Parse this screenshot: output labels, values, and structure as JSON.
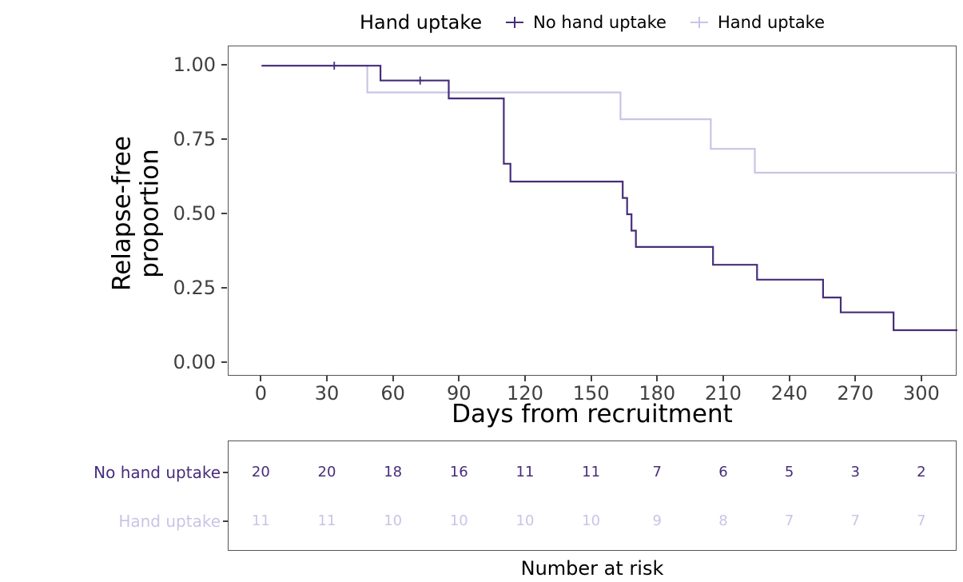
{
  "colors": {
    "no_hand_uptake": "#472d7b",
    "hand_uptake": "#cbc3e6",
    "axis_text": "#404040",
    "panel_border": "#555555"
  },
  "legend": {
    "title": "Hand uptake",
    "items": [
      {
        "label": "No hand uptake",
        "color": "#472d7b"
      },
      {
        "label": "Hand uptake",
        "color": "#cbc3e6"
      }
    ]
  },
  "axes": {
    "y_title_line1": "Relapse-free",
    "y_title_line2": "proportion",
    "x_title": "Days from recruitment",
    "y_ticks": [
      {
        "v": 1.0,
        "label": "1.00"
      },
      {
        "v": 0.75,
        "label": "0.75"
      },
      {
        "v": 0.5,
        "label": "0.50"
      },
      {
        "v": 0.25,
        "label": "0.25"
      },
      {
        "v": 0.0,
        "label": "0.00"
      }
    ],
    "x_ticks": [
      {
        "v": 0,
        "label": "0"
      },
      {
        "v": 30,
        "label": "30"
      },
      {
        "v": 60,
        "label": "60"
      },
      {
        "v": 90,
        "label": "90"
      },
      {
        "v": 120,
        "label": "120"
      },
      {
        "v": 150,
        "label": "150"
      },
      {
        "v": 180,
        "label": "180"
      },
      {
        "v": 210,
        "label": "210"
      },
      {
        "v": 240,
        "label": "240"
      },
      {
        "v": 270,
        "label": "270"
      },
      {
        "v": 300,
        "label": "300"
      }
    ]
  },
  "chart_data": {
    "type": "line",
    "subtype": "kaplan-meier-step",
    "title": "Hand uptake",
    "xlabel": "Days from recruitment",
    "ylabel": "Relapse-free proportion",
    "xlim": [
      -15,
      316
    ],
    "ylim": [
      -0.046,
      1.065
    ],
    "x_tick_values": [
      0,
      30,
      60,
      90,
      120,
      150,
      180,
      210,
      240,
      270,
      300
    ],
    "y_tick_values": [
      0,
      0.25,
      0.5,
      0.75,
      1.0
    ],
    "grid": false,
    "legend_position": "top",
    "series": [
      {
        "name": "No hand uptake",
        "color": "#472d7b",
        "points": [
          [
            0,
            1.0
          ],
          [
            54,
            0.95
          ],
          [
            85,
            0.89
          ],
          [
            110,
            0.67
          ],
          [
            113,
            0.61
          ],
          [
            164,
            0.555
          ],
          [
            166,
            0.5
          ],
          [
            168,
            0.445
          ],
          [
            170,
            0.39
          ],
          [
            205,
            0.33
          ],
          [
            225,
            0.28
          ],
          [
            255,
            0.22
          ],
          [
            263,
            0.17
          ],
          [
            287,
            0.11
          ]
        ],
        "end_x": 316,
        "censor_marks": [
          [
            33,
            1.0
          ],
          [
            72,
            0.95
          ]
        ]
      },
      {
        "name": "Hand uptake",
        "color": "#cbc3e6",
        "points": [
          [
            0,
            1.0
          ],
          [
            48,
            0.91
          ],
          [
            163,
            0.82
          ],
          [
            204,
            0.72
          ],
          [
            224,
            0.64
          ]
        ],
        "end_x": 316,
        "censor_marks": []
      }
    ]
  },
  "risk_table": {
    "caption": "Number at risk",
    "times": [
      0,
      30,
      60,
      90,
      120,
      150,
      180,
      210,
      240,
      270,
      300
    ],
    "rows": [
      {
        "label": "No hand uptake",
        "color": "#472d7b",
        "counts": [
          20,
          20,
          18,
          16,
          11,
          11,
          7,
          6,
          5,
          3,
          2
        ]
      },
      {
        "label": "Hand uptake",
        "color": "#cbc3e6",
        "counts": [
          11,
          11,
          10,
          10,
          10,
          10,
          9,
          8,
          7,
          7,
          7
        ]
      }
    ]
  }
}
